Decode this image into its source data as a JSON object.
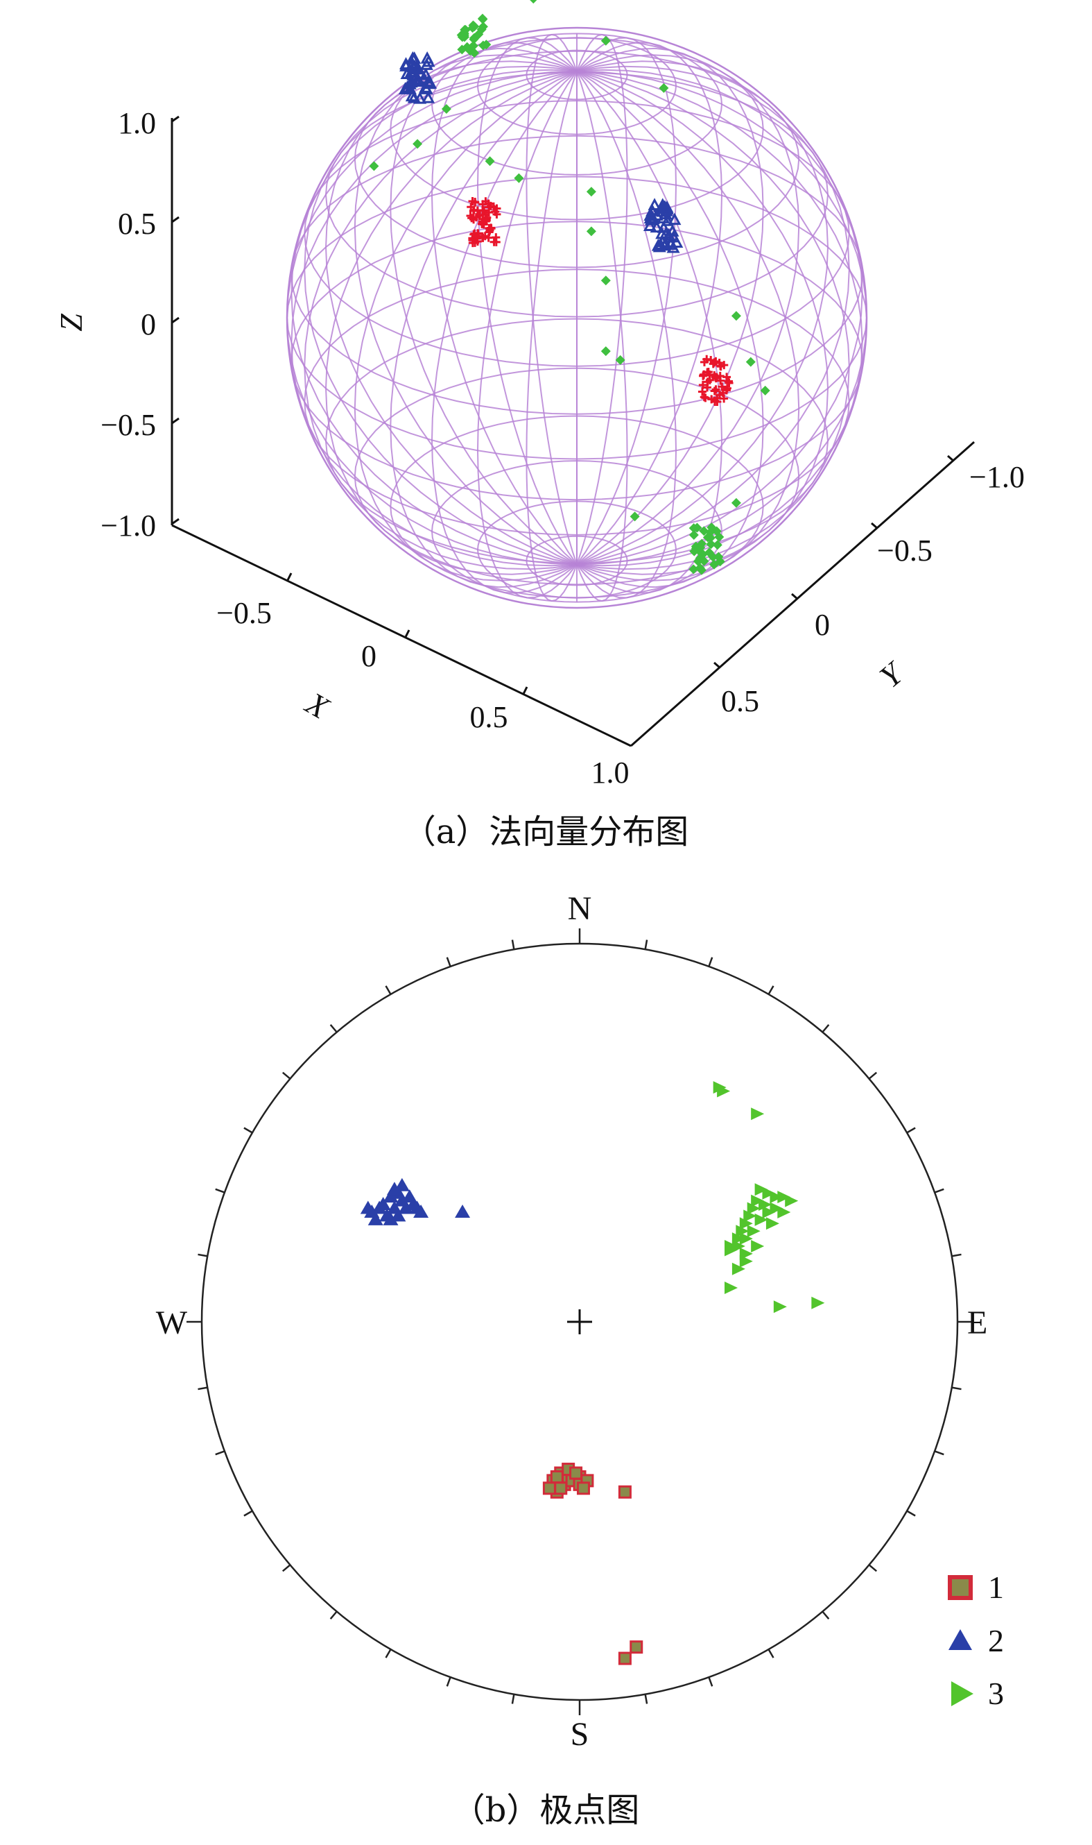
{
  "chart_data": [
    {
      "type": "scatter",
      "subtype": "3d-sphere",
      "title": "",
      "caption": "（a）法向量分布图",
      "axes": {
        "x": {
          "label": "X",
          "ticks": [
            "−0.5",
            "0",
            "0.5",
            "1.0"
          ]
        },
        "y": {
          "label": "Y",
          "ticks": [
            "−1.0",
            "−0.5",
            "0",
            "0.5"
          ]
        },
        "z": {
          "label": "Z",
          "ticks": [
            "1.0",
            "0.5",
            "0",
            "−0.5",
            "−1.0"
          ]
        }
      },
      "sphere": {
        "radius": 1.0,
        "wire_color": "#b784d6"
      },
      "grid": false,
      "series": [
        {
          "marker": "plus",
          "color": "#e8152b",
          "clusters": [
            {
              "center": [
                -0.32,
                0.33,
                0.2
              ],
              "n": 60
            },
            {
              "center": [
                0.48,
                -0.62,
                0.1
              ],
              "n": 45
            }
          ]
        },
        {
          "marker": "triangle",
          "color": "#2a3fa8",
          "clusters": [
            {
              "center": [
                -0.55,
                0.82,
                0.5
              ],
              "n": 40
            },
            {
              "center": [
                0.3,
                -0.75,
                0.8
              ],
              "n": 40
            }
          ]
        },
        {
          "marker": "diamond",
          "color": "#3fbf3f",
          "scattered": [
            [
              0.05,
              0.35,
              0.15
            ],
            [
              0.1,
              -0.05,
              0.18
            ],
            [
              0.05,
              -0.12,
              0.58
            ],
            [
              -0.55,
              0.62,
              0.35
            ],
            [
              -0.45,
              0.78,
              0.4
            ],
            [
              -0.7,
              0.55,
              0.3
            ],
            [
              -0.15,
              0.6,
              0.95
            ],
            [
              0.1,
              0.25,
              0.98
            ],
            [
              0.55,
              -0.72,
              0.42
            ],
            [
              0.6,
              -0.4,
              0.05
            ],
            [
              0.65,
              -0.55,
              0.02
            ],
            [
              -0.3,
              0.55,
              0.32
            ],
            [
              0.2,
              0.2,
              -0.92
            ],
            [
              0.15,
              0.05,
              -0.2
            ],
            [
              0.1,
              0.2,
              -0.25
            ],
            [
              0.55,
              -0.35,
              -0.55
            ],
            [
              0.3,
              0.02,
              0.92
            ],
            [
              -0.2,
              0.5,
              0.28
            ]
          ],
          "clusters": [
            {
              "center": [
                -0.35,
                0.45,
                0.88
              ],
              "n": 25
            },
            {
              "center": [
                0.45,
                -0.15,
                -0.85
              ],
              "n": 30
            }
          ]
        }
      ]
    },
    {
      "type": "scatter",
      "subtype": "stereonet",
      "title": "",
      "caption": "（b）极点图",
      "directions": {
        "north": "N",
        "south": "S",
        "east": "E",
        "west": "W"
      },
      "tick_count": 36,
      "legend_position": "bottom-right",
      "series": [
        {
          "name": "1",
          "marker": "square",
          "color": "#d22b3a",
          "fill": "#8a8a4a",
          "points": [
            [
              -0.07,
              -0.42
            ],
            [
              -0.06,
              -0.45
            ],
            [
              -0.05,
              -0.4
            ],
            [
              -0.04,
              -0.43
            ],
            [
              -0.03,
              -0.41
            ],
            [
              -0.05,
              -0.44
            ],
            [
              -0.02,
              -0.42
            ],
            [
              0.0,
              -0.41
            ],
            [
              0.0,
              -0.43
            ],
            [
              -0.08,
              -0.44
            ],
            [
              -0.03,
              -0.39
            ],
            [
              -0.01,
              -0.4
            ],
            [
              0.02,
              -0.42
            ],
            [
              -0.06,
              -0.41
            ],
            [
              0.01,
              -0.44
            ],
            [
              0.12,
              -0.45
            ],
            [
              0.15,
              -0.86
            ],
            [
              0.12,
              -0.89
            ]
          ]
        },
        {
          "name": "2",
          "marker": "triangle",
          "color": "#2a3fa8",
          "points": [
            [
              -0.55,
              0.29
            ],
            [
              -0.52,
              0.31
            ],
            [
              -0.5,
              0.33
            ],
            [
              -0.48,
              0.34
            ],
            [
              -0.47,
              0.32
            ],
            [
              -0.49,
              0.3
            ],
            [
              -0.51,
              0.28
            ],
            [
              -0.53,
              0.3
            ],
            [
              -0.46,
              0.3
            ],
            [
              -0.44,
              0.31
            ],
            [
              -0.45,
              0.33
            ],
            [
              -0.43,
              0.3
            ],
            [
              -0.54,
              0.27
            ],
            [
              -0.5,
              0.27
            ],
            [
              -0.48,
              0.28
            ],
            [
              -0.56,
              0.3
            ],
            [
              -0.49,
              0.35
            ],
            [
              -0.47,
              0.36
            ],
            [
              -0.42,
              0.29
            ],
            [
              -0.31,
              0.29
            ]
          ]
        },
        {
          "name": "3",
          "marker": "triangle-right",
          "color": "#52c42c",
          "points": [
            [
              0.37,
              0.62
            ],
            [
              0.38,
              0.61
            ],
            [
              0.47,
              0.55
            ],
            [
              0.48,
              0.35
            ],
            [
              0.5,
              0.34
            ],
            [
              0.52,
              0.33
            ],
            [
              0.54,
              0.33
            ],
            [
              0.56,
              0.32
            ],
            [
              0.47,
              0.32
            ],
            [
              0.46,
              0.3
            ],
            [
              0.45,
              0.28
            ],
            [
              0.44,
              0.26
            ],
            [
              0.43,
              0.24
            ],
            [
              0.42,
              0.22
            ],
            [
              0.4,
              0.2
            ],
            [
              0.4,
              0.19
            ],
            [
              0.42,
              0.2
            ],
            [
              0.44,
              0.22
            ],
            [
              0.46,
              0.24
            ],
            [
              0.48,
              0.27
            ],
            [
              0.5,
              0.29
            ],
            [
              0.49,
              0.31
            ],
            [
              0.44,
              0.18
            ],
            [
              0.52,
              0.3
            ],
            [
              0.54,
              0.29
            ],
            [
              0.42,
              0.14
            ],
            [
              0.4,
              0.09
            ],
            [
              0.53,
              0.04
            ],
            [
              0.63,
              0.05
            ],
            [
              0.44,
              0.16
            ],
            [
              0.47,
              0.2
            ],
            [
              0.51,
              0.26
            ]
          ]
        }
      ]
    }
  ]
}
